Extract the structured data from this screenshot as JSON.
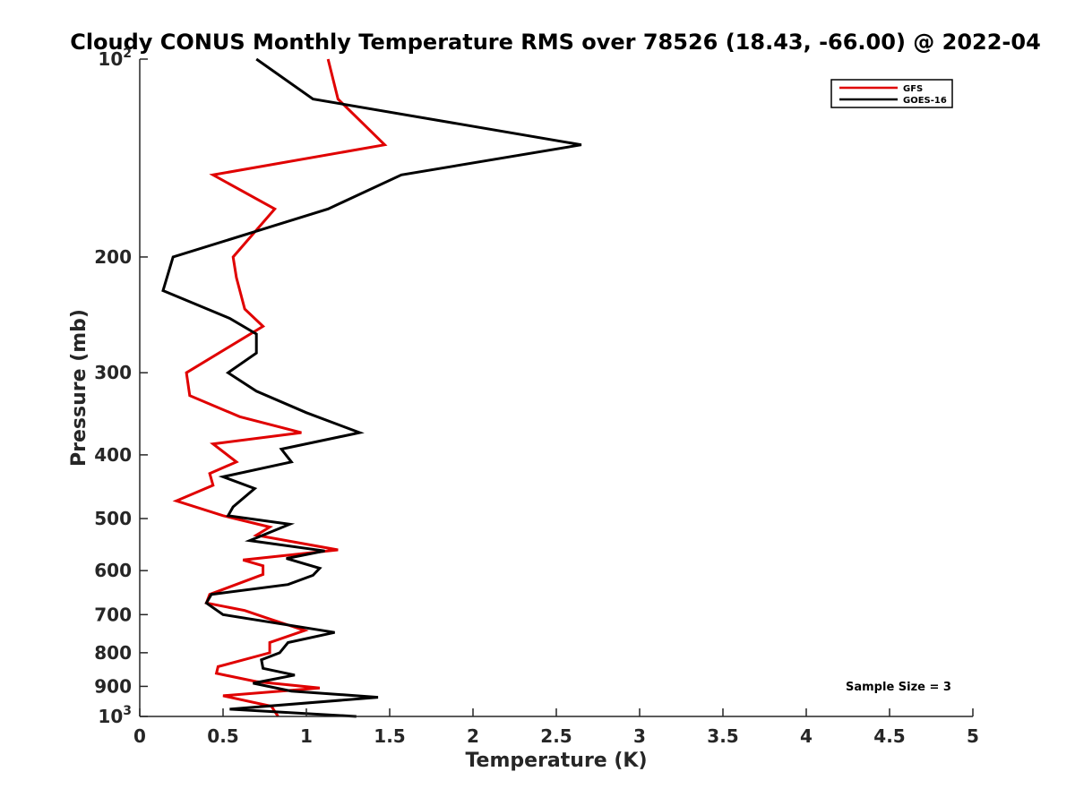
{
  "chart_data": {
    "type": "line",
    "title": "Cloudy CONUS Monthly Temperature RMS over 78526 (18.43, -66.00) @ 2022-04",
    "xlabel": "Temperature (K)",
    "ylabel": "Pressure (mb)",
    "xlim": [
      0,
      5
    ],
    "ylim": [
      1000,
      100
    ],
    "yscale": "log",
    "x_ticks": [
      0,
      0.5,
      1,
      1.5,
      2,
      2.5,
      3,
      3.5,
      4,
      4.5,
      5
    ],
    "x_tick_labels": [
      "0",
      "0.5",
      "1",
      "1.5",
      "2",
      "2.5",
      "3",
      "3.5",
      "4",
      "4.5",
      "5"
    ],
    "y_ticks": [
      100,
      200,
      300,
      400,
      500,
      600,
      700,
      800,
      900,
      1000
    ],
    "y_tick_labels": [
      {
        "base": "10",
        "exp": "2"
      },
      {
        "base": "200",
        "exp": ""
      },
      {
        "base": "300",
        "exp": ""
      },
      {
        "base": "400",
        "exp": ""
      },
      {
        "base": "500",
        "exp": ""
      },
      {
        "base": "600",
        "exp": ""
      },
      {
        "base": "700",
        "exp": ""
      },
      {
        "base": "800",
        "exp": ""
      },
      {
        "base": "900",
        "exp": ""
      },
      {
        "base": "10",
        "exp": "3"
      }
    ],
    "legend_position": "top-right",
    "grid": false,
    "series": [
      {
        "name": "GFS",
        "color": "#e00000",
        "points": [
          [
            1.13,
            100
          ],
          [
            1.19,
            115
          ],
          [
            1.47,
            135
          ],
          [
            0.44,
            150
          ],
          [
            0.81,
            169
          ],
          [
            0.56,
            200
          ],
          [
            0.58,
            215
          ],
          [
            0.63,
            240
          ],
          [
            0.74,
            255
          ],
          [
            0.28,
            300
          ],
          [
            0.3,
            325
          ],
          [
            0.6,
            350
          ],
          [
            0.97,
            370
          ],
          [
            0.44,
            385
          ],
          [
            0.58,
            410
          ],
          [
            0.42,
            427
          ],
          [
            0.44,
            445
          ],
          [
            0.22,
            470
          ],
          [
            0.5,
            495
          ],
          [
            0.78,
            515
          ],
          [
            0.7,
            530
          ],
          [
            1.19,
            558
          ],
          [
            0.62,
            578
          ],
          [
            0.74,
            590
          ],
          [
            0.74,
            608
          ],
          [
            0.42,
            652
          ],
          [
            0.4,
            672
          ],
          [
            0.63,
            690
          ],
          [
            0.76,
            708
          ],
          [
            0.99,
            740
          ],
          [
            0.78,
            772
          ],
          [
            0.78,
            800
          ],
          [
            0.47,
            840
          ],
          [
            0.46,
            860
          ],
          [
            0.7,
            885
          ],
          [
            1.08,
            905
          ],
          [
            0.5,
            930
          ],
          [
            0.79,
            965
          ],
          [
            0.83,
            1000
          ]
        ]
      },
      {
        "name": "GOES-16",
        "color": "#000000",
        "points": [
          [
            0.7,
            100
          ],
          [
            1.04,
            115
          ],
          [
            2.65,
            135
          ],
          [
            1.57,
            150
          ],
          [
            1.13,
            169
          ],
          [
            0.2,
            200
          ],
          [
            0.14,
            225
          ],
          [
            0.54,
            248
          ],
          [
            0.7,
            262
          ],
          [
            0.7,
            280
          ],
          [
            0.53,
            300
          ],
          [
            0.7,
            320
          ],
          [
            1.0,
            345
          ],
          [
            1.32,
            370
          ],
          [
            0.85,
            392
          ],
          [
            0.91,
            410
          ],
          [
            0.5,
            432
          ],
          [
            0.69,
            450
          ],
          [
            0.56,
            480
          ],
          [
            0.53,
            495
          ],
          [
            0.9,
            510
          ],
          [
            0.66,
            540
          ],
          [
            1.11,
            560
          ],
          [
            0.88,
            575
          ],
          [
            1.08,
            595
          ],
          [
            1.04,
            610
          ],
          [
            0.89,
            630
          ],
          [
            0.43,
            652
          ],
          [
            0.4,
            672
          ],
          [
            0.5,
            700
          ],
          [
            1.17,
            745
          ],
          [
            0.89,
            772
          ],
          [
            0.84,
            800
          ],
          [
            0.73,
            820
          ],
          [
            0.74,
            845
          ],
          [
            0.93,
            865
          ],
          [
            0.68,
            890
          ],
          [
            0.91,
            915
          ],
          [
            1.43,
            935
          ],
          [
            0.54,
            975
          ],
          [
            1.3,
            1000
          ]
        ]
      }
    ],
    "annotations": [
      {
        "text": "Sample Size = 3"
      }
    ]
  }
}
